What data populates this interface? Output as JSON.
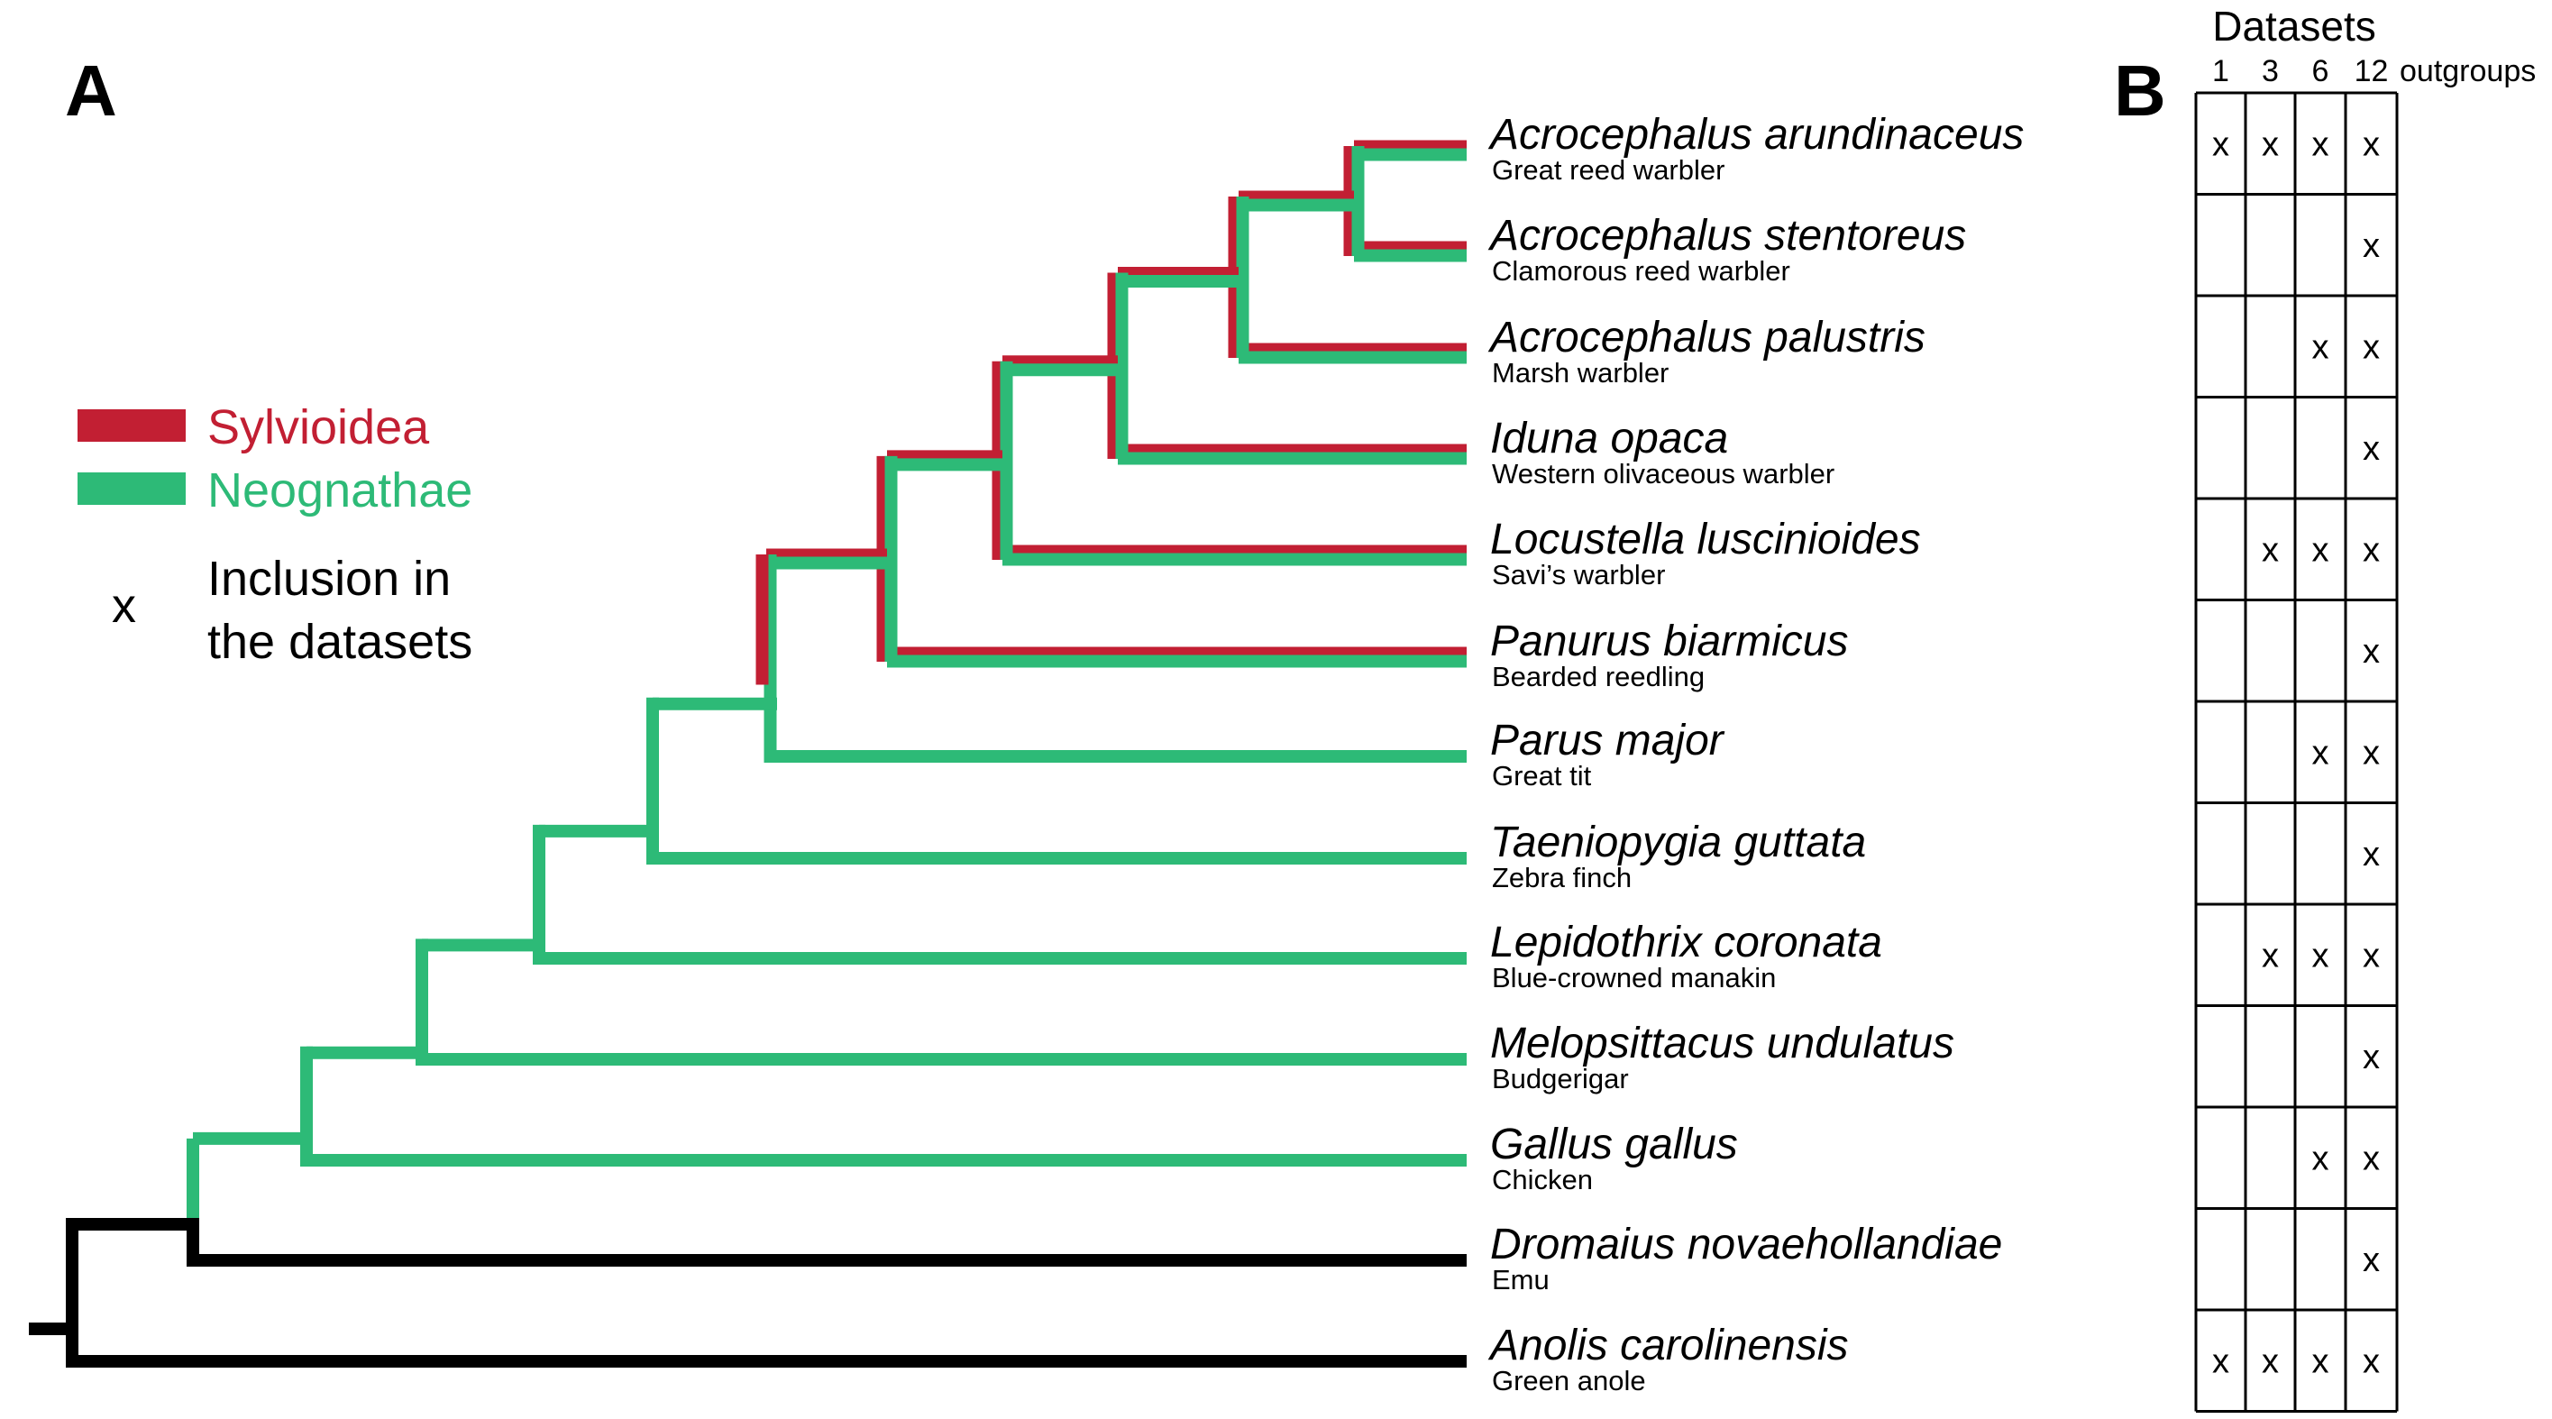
{
  "panels": {
    "a": "A",
    "b": "B"
  },
  "colors": {
    "sylvioidea": "#c21f33",
    "neognathae": "#2dba77",
    "outgroup": "#000000"
  },
  "legend": {
    "sylvioidea": "Sylvioidea",
    "neognathae": "Neognathae",
    "mark_symbol": "x",
    "inclusion_line1": "Inclusion in",
    "inclusion_line2": "the datasets"
  },
  "datasets": {
    "title": "Datasets",
    "columns": [
      "1",
      "3",
      "6",
      "12"
    ],
    "columns_suffix": "outgroups",
    "mark": "x"
  },
  "taxa": [
    {
      "scientific": "Acrocephalus arundinaceus",
      "common": "Great reed warbler",
      "clade": "sylvioidea",
      "datasets": [
        true,
        true,
        true,
        true
      ]
    },
    {
      "scientific": "Acrocephalus stentoreus",
      "common": "Clamorous reed warbler",
      "clade": "sylvioidea",
      "datasets": [
        false,
        false,
        false,
        true
      ]
    },
    {
      "scientific": "Acrocephalus palustris",
      "common": "Marsh warbler",
      "clade": "sylvioidea",
      "datasets": [
        false,
        false,
        true,
        true
      ]
    },
    {
      "scientific": "Iduna opaca",
      "common": "Western olivaceous warbler",
      "clade": "sylvioidea",
      "datasets": [
        false,
        false,
        false,
        true
      ]
    },
    {
      "scientific": "Locustella luscinioides",
      "common": "Savi’s warbler",
      "clade": "sylvioidea",
      "datasets": [
        false,
        true,
        true,
        true
      ]
    },
    {
      "scientific": "Panurus biarmicus",
      "common": "Bearded reedling",
      "clade": "sylvioidea",
      "datasets": [
        false,
        false,
        false,
        true
      ]
    },
    {
      "scientific": "Parus major",
      "common": "Great tit",
      "clade": "neognathae",
      "datasets": [
        false,
        false,
        true,
        true
      ]
    },
    {
      "scientific": "Taeniopygia guttata",
      "common": "Zebra finch",
      "clade": "neognathae",
      "datasets": [
        false,
        false,
        false,
        true
      ]
    },
    {
      "scientific": "Lepidothrix coronata",
      "common": "Blue-crowned manakin",
      "clade": "neognathae",
      "datasets": [
        false,
        true,
        true,
        true
      ]
    },
    {
      "scientific": "Melopsittacus undulatus",
      "common": "Budgerigar",
      "clade": "neognathae",
      "datasets": [
        false,
        false,
        false,
        true
      ]
    },
    {
      "scientific": "Gallus gallus",
      "common": "Chicken",
      "clade": "neognathae",
      "datasets": [
        false,
        false,
        true,
        true
      ]
    },
    {
      "scientific": "Dromaius novaehollandiae",
      "common": "Emu",
      "clade": "outgroup",
      "datasets": [
        false,
        false,
        false,
        true
      ]
    },
    {
      "scientific": "Anolis carolinensis",
      "common": "Green anole",
      "clade": "outgroup",
      "datasets": [
        true,
        true,
        true,
        true
      ]
    }
  ]
}
